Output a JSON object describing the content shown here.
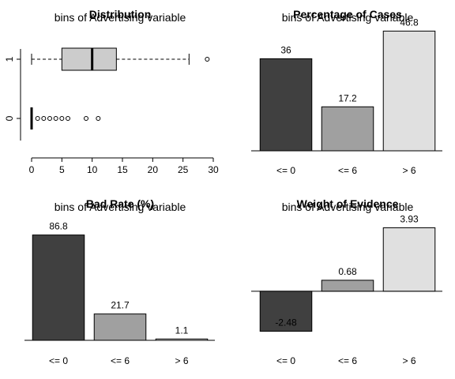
{
  "chart_data": [
    {
      "type": "boxplot",
      "title": "Distribution",
      "subtitle": "bins of Advertising variable",
      "orientation": "horizontal",
      "groups": [
        "1",
        "0"
      ],
      "xticks": [
        0,
        5,
        10,
        15,
        20,
        25,
        30
      ],
      "xlim": [
        0,
        30
      ],
      "boxes": [
        {
          "name": "1",
          "whisker_low": 0,
          "q1": 5,
          "median": 10,
          "q3": 14,
          "whisker_high": 26,
          "outliers": [
            29
          ]
        },
        {
          "name": "0",
          "whisker_low": 0,
          "q1": 0,
          "median": 0,
          "q3": 0,
          "whisker_high": 0,
          "outliers": [
            1,
            2,
            3,
            4,
            5,
            6,
            9,
            11
          ]
        }
      ],
      "colors": {
        "box": "#cccccc"
      }
    },
    {
      "type": "bar",
      "title": "Percentage of Cases",
      "subtitle": "bins of Advertising variable",
      "categories": [
        "<= 0",
        "<= 6",
        "> 6"
      ],
      "values": [
        36,
        17.2,
        46.8
      ],
      "value_labels": [
        "36",
        "17.2",
        "46.8"
      ],
      "ylim": [
        0,
        50
      ],
      "colors": [
        "#404040",
        "#a0a0a0",
        "#e0e0e0"
      ]
    },
    {
      "type": "bar",
      "title": "Bad Rate (%)",
      "subtitle": "bins of Advertising variable",
      "categories": [
        "<= 0",
        "<= 6",
        "> 6"
      ],
      "values": [
        86.8,
        21.7,
        1.1
      ],
      "value_labels": [
        "86.8",
        "21.7",
        "1.1"
      ],
      "ylim": [
        0,
        95
      ],
      "colors": [
        "#404040",
        "#a0a0a0",
        "#e0e0e0"
      ]
    },
    {
      "type": "bar",
      "title": "Weight of Evidence",
      "subtitle": "bins of Advertising variable",
      "categories": [
        "<= 0",
        "<= 6",
        "> 6"
      ],
      "values": [
        -2.48,
        0.68,
        3.93
      ],
      "value_labels": [
        "-2.48",
        "0.68",
        "3.93"
      ],
      "ylim": [
        -2.6,
        4.1
      ],
      "colors": [
        "#404040",
        "#a0a0a0",
        "#e0e0e0"
      ]
    }
  ]
}
